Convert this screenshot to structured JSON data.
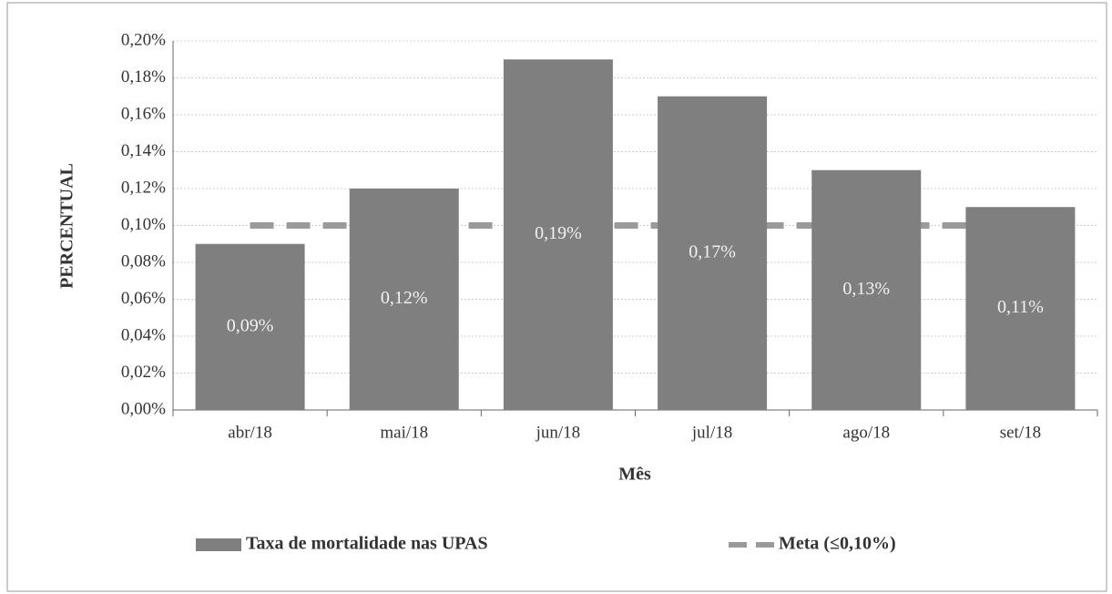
{
  "chart_data": {
    "type": "bar",
    "x_label": "Mês",
    "y_label": "PERCENTUAL",
    "categories": [
      "abr/18",
      "mai/18",
      "jun/18",
      "jul/18",
      "ago/18",
      "set/18"
    ],
    "series": [
      {
        "name": "Taxa de mortalidade nas UPAS",
        "type": "bar",
        "color": "#7f7f7f",
        "values": [
          0.09,
          0.12,
          0.19,
          0.17,
          0.13,
          0.11
        ],
        "value_labels": [
          "0,09%",
          "0,12%",
          "0,19%",
          "0,17%",
          "0,13%",
          "0,11%"
        ]
      },
      {
        "name": "Meta (≤0,10%)",
        "type": "line",
        "dashed": true,
        "color": "#9a9a9a",
        "values": [
          0.1,
          0.1,
          0.1,
          0.1,
          0.1,
          0.1
        ]
      }
    ],
    "ylim": [
      0,
      0.2
    ],
    "yticks": [
      {
        "value": 0,
        "label": "0,00%"
      },
      {
        "value": 0.02,
        "label": "0,02%"
      },
      {
        "value": 0.04,
        "label": "0,04%"
      },
      {
        "value": 0.06,
        "label": "0,06%"
      },
      {
        "value": 0.08,
        "label": "0,08%"
      },
      {
        "value": 0.1,
        "label": "0,10%"
      },
      {
        "value": 0.12,
        "label": "0,12%"
      },
      {
        "value": 0.14,
        "label": "0,14%"
      },
      {
        "value": 0.16,
        "label": "0,16%"
      },
      {
        "value": 0.18,
        "label": "0,18%"
      },
      {
        "value": 0.2,
        "label": "0,20%"
      }
    ],
    "grid": true,
    "legend": "bottom"
  }
}
